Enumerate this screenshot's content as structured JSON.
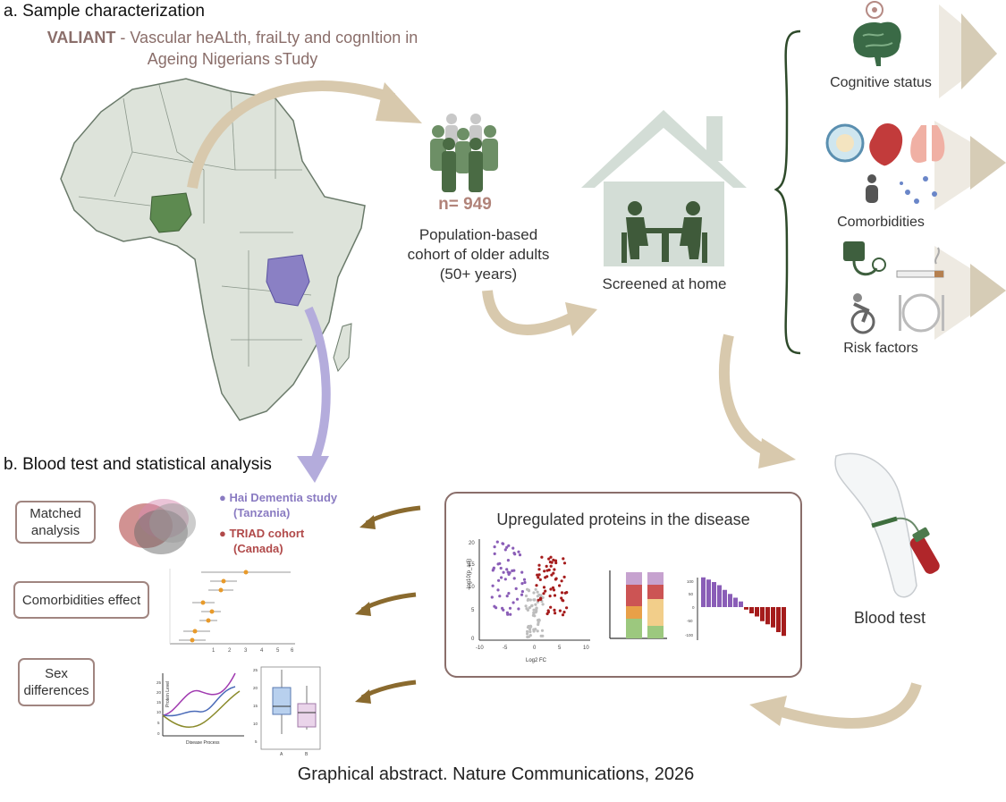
{
  "section_a": {
    "title": "a. Sample characterization",
    "study_acronym": "VALIANT",
    "study_line1_rest": " - Vascular heALth, fraiLty and cognItion in",
    "study_line2": "Ageing Nigerians sTudy"
  },
  "cohort": {
    "n": "n= 949",
    "line1": "Population-based",
    "line2": "cohort of older adults",
    "line3": "(50+ years)"
  },
  "home": {
    "label": "Screened at home"
  },
  "assessments": {
    "cognitive": "Cognitive status",
    "comorbidities": "Comorbidities",
    "risk": "Risk factors"
  },
  "section_b": {
    "title": "b. Blood test and statistical analysis"
  },
  "analyses": {
    "matched": [
      "Matched",
      "analysis"
    ],
    "comorbid": "Comorbidities effect",
    "sex": [
      "Sex",
      "differences"
    ]
  },
  "legend": {
    "hai": [
      "Hai Dementia study",
      "(Tanzania)"
    ],
    "triad": [
      "TRIAD cohort",
      "(Canada)"
    ],
    "hai_color": "#8a7bc2",
    "triad_color": "#b14a4a"
  },
  "panel": {
    "title": "Upregulated proteins in the disease",
    "volcano_xlabel": "Log2 FC",
    "volcano_ylabel": "-log10(p_adj)",
    "volcano_xticks": [
      "-10",
      "-5",
      "0",
      "5",
      "10"
    ],
    "volcano_yticks": [
      "20",
      "15",
      "10",
      "5",
      "0"
    ],
    "bar_yticks": [
      "100",
      "50",
      "0",
      "-50",
      "-100"
    ]
  },
  "blood": {
    "label": "Blood test"
  },
  "mini_charts": {
    "line_ylabel": "Protein Level",
    "line_xlabel": "Disease Process",
    "line_yticks": [
      "25",
      "20",
      "15",
      "10",
      "5",
      "0"
    ],
    "box_yticks": [
      "25",
      "20",
      "15",
      "10",
      "5"
    ],
    "box_xticks": [
      "A",
      "B"
    ],
    "forest_xticks": [
      "1",
      "2",
      "3",
      "4",
      "5",
      "6"
    ]
  },
  "footer": {
    "text": "Graphical abstract. Nature Communications, 2026"
  },
  "colors": {
    "arrow_tan": "#d8c9ad",
    "arrow_brown": "#8a6a2e",
    "nigeria": "#5d8a50",
    "tanzania": "#8a80c4",
    "map_fill": "#dde3da",
    "house": "#d3ddd6",
    "people_dark": "#4a6b44",
    "purple": "#8a5db7",
    "red": "#a51c1c"
  }
}
